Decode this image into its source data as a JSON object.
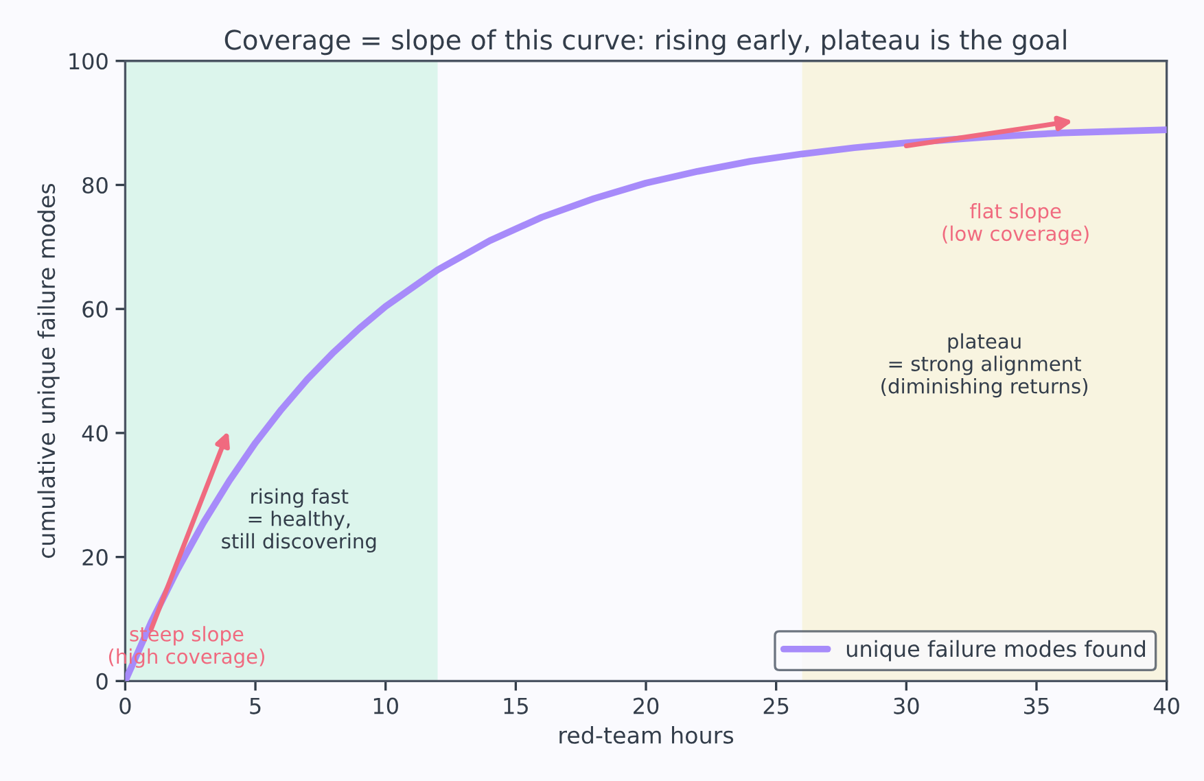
{
  "chart_data": {
    "type": "line",
    "title": "Coverage = slope of this curve: rising early, plateau is the goal",
    "xlabel": "red-team hours",
    "ylabel": "cumulative unique failure modes",
    "x": [
      0,
      1,
      2,
      3,
      4,
      5,
      6,
      7,
      8,
      9,
      10,
      12,
      14,
      16,
      18,
      20,
      22,
      24,
      26,
      28,
      30,
      33,
      36,
      40
    ],
    "series": [
      {
        "name": "unique failure modes found",
        "color": "#a78bfa",
        "values": [
          0,
          9.5,
          17.9,
          25.5,
          32.3,
          38.4,
          43.8,
          48.7,
          53.0,
          56.9,
          60.4,
          66.3,
          71.0,
          74.8,
          77.8,
          80.3,
          82.2,
          83.8,
          85.0,
          86.0,
          86.8,
          87.7,
          88.4,
          88.9
        ]
      }
    ],
    "xlim": [
      0,
      40
    ],
    "xticks": [
      0,
      5,
      10,
      15,
      20,
      25,
      30,
      35,
      40
    ],
    "ylim": [
      0,
      100
    ],
    "yticks": [
      0,
      20,
      40,
      60,
      80,
      100
    ],
    "bands": [
      {
        "axis": "x",
        "from": 0,
        "to": 12,
        "color": "#dcf5ec"
      },
      {
        "axis": "x",
        "from": 26,
        "to": 40,
        "color": "#f8f4e0"
      }
    ],
    "annotations": [
      "steep slope\n(high coverage)",
      "flat slope\n(low coverage)",
      "rising fast\n= healthy,\nstill discovering",
      "plateau\n= strong alignment\n(diminishing returns)"
    ],
    "grid": false,
    "legend": "bottom right",
    "marker": "none",
    "line_style": "solid"
  }
}
